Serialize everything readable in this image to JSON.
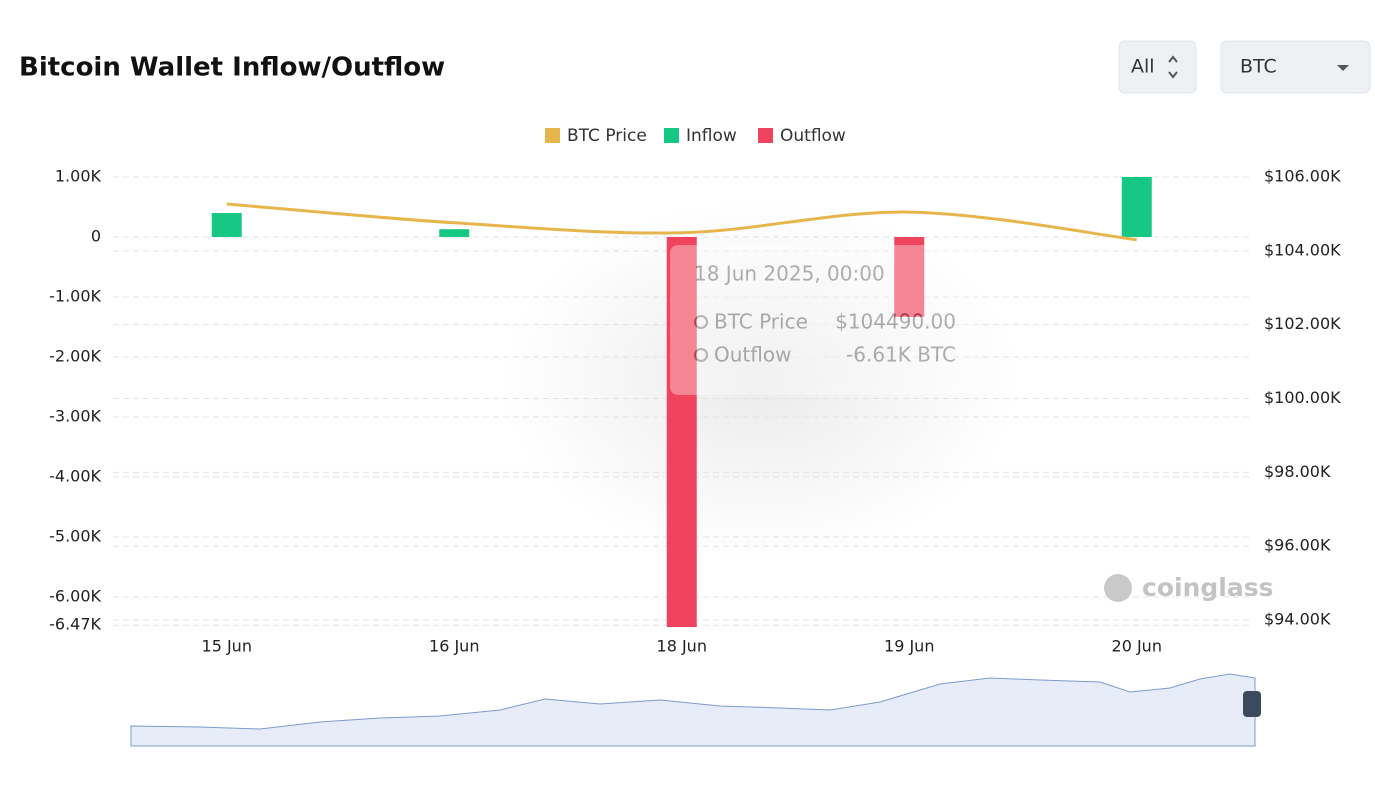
{
  "chart_data": {
    "type": "bar",
    "title": "Bitcoin Wallet Inflow/Outflow",
    "controls": {
      "range": "All",
      "asset": "BTC"
    },
    "categories": [
      "15 Jun",
      "16 Jun",
      "18 Jun",
      "19 Jun",
      "20 Jun"
    ],
    "series": [
      {
        "name": "BTC Price",
        "type": "line",
        "axis": "y2",
        "color": "#e6b64c",
        "values": [
          105270,
          104760,
          104490,
          105050,
          104300
        ]
      },
      {
        "name": "Inflow",
        "type": "bar",
        "color": "#17c784",
        "values": [
          400,
          130,
          null,
          null,
          1000
        ]
      },
      {
        "name": "Outflow",
        "type": "bar",
        "color": "#f0435d",
        "values": [
          null,
          null,
          -6610,
          -1330,
          null
        ]
      }
    ],
    "ylim": [
      -6470,
      1000
    ],
    "yticks": [
      {
        "value": 1000,
        "label": "1.00K"
      },
      0,
      {
        "value": -1000,
        "label": "-1.00K"
      },
      {
        "value": -2000,
        "label": "-2.00K"
      },
      {
        "value": -3000,
        "label": "-3.00K"
      },
      {
        "value": -4000,
        "label": "-4.00K"
      },
      {
        "value": -5000,
        "label": "-5.00K"
      },
      {
        "value": -6000,
        "label": "-6.00K"
      },
      {
        "value": -6470,
        "label": "-6.47K"
      }
    ],
    "y2lim": [
      93860,
      106000
    ],
    "y2ticks": [
      {
        "value": 106000,
        "label": "$106.00K"
      },
      {
        "value": 104000,
        "label": "$104.00K"
      },
      {
        "value": 102000,
        "label": "$102.00K"
      },
      {
        "value": 100000,
        "label": "$100.00K"
      },
      {
        "value": 98000,
        "label": "$98.00K"
      },
      {
        "value": 96000,
        "label": "$96.00K"
      },
      {
        "value": 94000,
        "label": "$94.00K"
      }
    ],
    "grid": true,
    "legend": "top",
    "tooltip": {
      "title": "18 Jun 2025, 00:00",
      "rows": [
        [
          "BTC Price",
          "$104490.00"
        ],
        [
          "Outflow",
          "-6.61K BTC"
        ]
      ]
    },
    "watermark": "coinglass"
  }
}
